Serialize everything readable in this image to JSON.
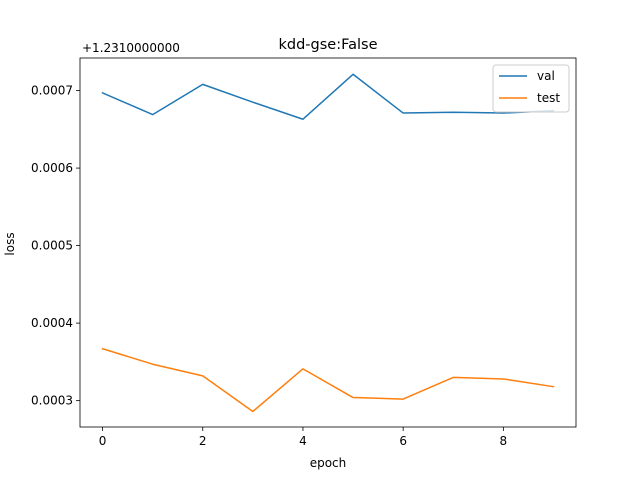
{
  "chart_data": {
    "type": "line",
    "title": "kdd-gse:False",
    "xlabel": "epoch",
    "ylabel": "loss",
    "offset_label": "+1.2310000000",
    "x": [
      0,
      1,
      2,
      3,
      4,
      5,
      6,
      7,
      8,
      9
    ],
    "xlim": [
      -0.45,
      9.45
    ],
    "ylim": [
      0.000266,
      0.000742
    ],
    "xticks": [
      0,
      2,
      4,
      6,
      8
    ],
    "xtick_labels": [
      "0",
      "2",
      "4",
      "6",
      "8"
    ],
    "yticks": [
      0.0003,
      0.0004,
      0.0005,
      0.0006,
      0.0007
    ],
    "ytick_labels": [
      "0.0003",
      "0.0004",
      "0.0005",
      "0.0006",
      "0.0007"
    ],
    "grid": false,
    "legend_position": "upper right",
    "series": [
      {
        "name": "val",
        "color": "#1f77b4",
        "values": [
          0.000697,
          0.000669,
          0.000708,
          0.000685,
          0.000663,
          0.000721,
          0.000671,
          0.000672,
          0.000671,
          0.000674
        ]
      },
      {
        "name": "test",
        "color": "#ff7f0e",
        "values": [
          0.000367,
          0.000347,
          0.000332,
          0.000286,
          0.000341,
          0.000304,
          0.000302,
          0.00033,
          0.000328,
          0.000318
        ]
      }
    ]
  }
}
